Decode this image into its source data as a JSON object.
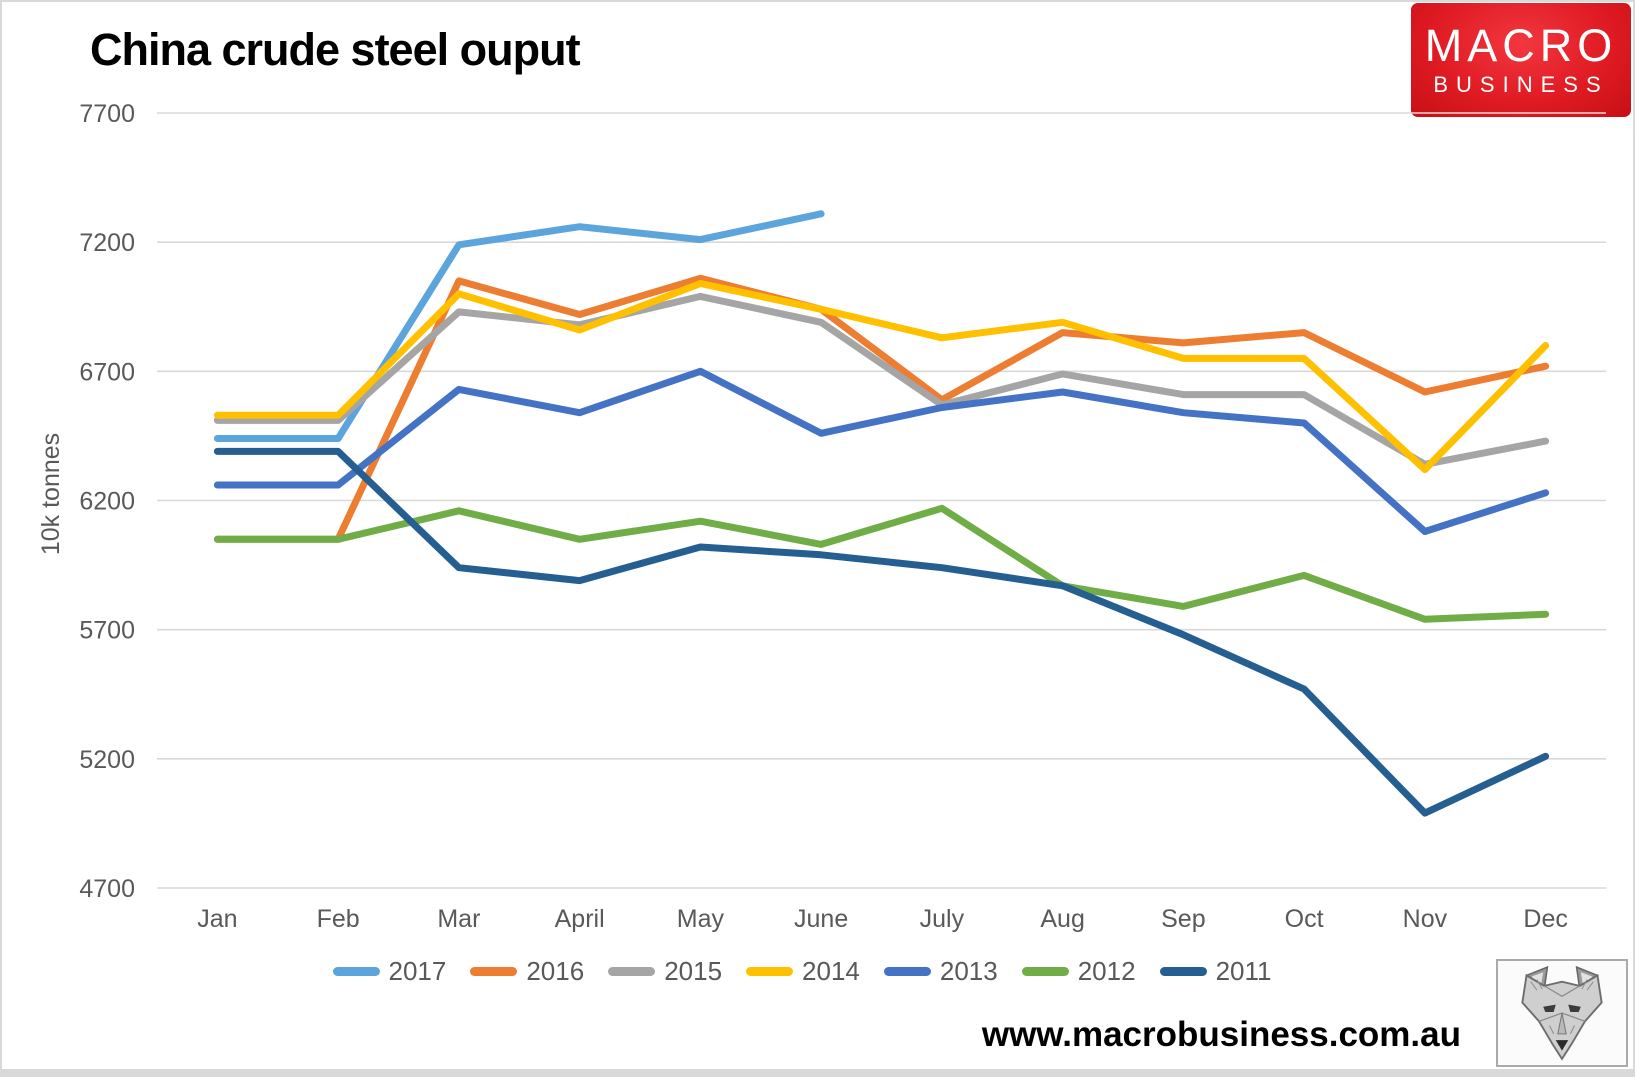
{
  "title": "China crude steel ouput",
  "logo": {
    "line1": "MACRO",
    "line2": "BUSINESS",
    "bg_color": "#E01B23"
  },
  "footer": {
    "url": "www.macrobusiness.com.au",
    "icon": "wolf-sketch-logo"
  },
  "axis_colors": {
    "grid": "#D9D9D9",
    "tick_text": "#595959"
  },
  "chart_data": {
    "type": "line",
    "title": "China crude steel ouput",
    "xlabel": "",
    "ylabel": "10k tonnes",
    "ylim": [
      4700,
      7700
    ],
    "yticks": [
      7700,
      7200,
      6700,
      6200,
      5700,
      5200,
      4700
    ],
    "grid": true,
    "legend_position": "bottom",
    "categories": [
      "Jan",
      "Feb",
      "Mar",
      "April",
      "May",
      "June",
      "July",
      "Aug",
      "Sep",
      "Oct",
      "Nov",
      "Dec"
    ],
    "series": [
      {
        "name": "2017",
        "color": "#5BA5DC",
        "values": [
          6440,
          6440,
          7190,
          7260,
          7210,
          7310,
          null,
          null,
          null,
          null,
          null,
          null
        ]
      },
      {
        "name": "2016",
        "color": "#ED7D31",
        "values": [
          6050,
          6050,
          7050,
          6920,
          7060,
          6940,
          6590,
          6850,
          6810,
          6850,
          6620,
          6720
        ]
      },
      {
        "name": "2015",
        "color": "#A5A5A5",
        "values": [
          6510,
          6510,
          6930,
          6880,
          6990,
          6890,
          6570,
          6690,
          6610,
          6610,
          6340,
          6430
        ]
      },
      {
        "name": "2014",
        "color": "#FFC000",
        "values": [
          6530,
          6530,
          7000,
          6860,
          7040,
          6940,
          6830,
          6890,
          6750,
          6750,
          6320,
          6800
        ]
      },
      {
        "name": "2013",
        "color": "#4472C4",
        "values": [
          6260,
          6260,
          6630,
          6540,
          6700,
          6460,
          6560,
          6620,
          6540,
          6500,
          6080,
          6230
        ]
      },
      {
        "name": "2012",
        "color": "#70AD47",
        "values": [
          6050,
          6050,
          6160,
          6050,
          6120,
          6030,
          6170,
          5870,
          5790,
          5910,
          5740,
          5760
        ]
      },
      {
        "name": "2011",
        "color": "#255E91",
        "values": [
          6390,
          6390,
          5940,
          5890,
          6020,
          5990,
          5940,
          5870,
          5680,
          5470,
          4990,
          5210
        ]
      }
    ]
  }
}
